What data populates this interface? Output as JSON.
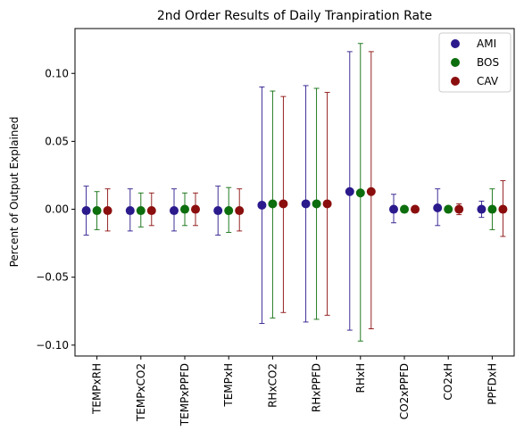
{
  "chart_data": {
    "type": "scatter",
    "title": "2nd Order Results of Daily Tranpiration Rate",
    "xlabel": "",
    "ylabel": "Percent of Output Explained",
    "categories": [
      "TEMPxRH",
      "TEMPxCO2",
      "TEMPxPPFD",
      "TEMPxH",
      "RHxCO2",
      "RHxPPFD",
      "RHxH",
      "CO2xPPFD",
      "CO2xH",
      "PPFDxH"
    ],
    "ylim": [
      -0.108,
      0.133
    ],
    "yticks": [
      -0.1,
      -0.05,
      0.0,
      0.05,
      0.1
    ],
    "ytick_labels": [
      "−0.10",
      "−0.05",
      "0.00",
      "0.05",
      "0.10"
    ],
    "grid": false,
    "legend_position": "top-right",
    "series": [
      {
        "name": "AMI",
        "color": "#2a1a8c",
        "values": [
          -0.001,
          -0.001,
          -0.001,
          -0.001,
          0.003,
          0.004,
          0.013,
          0.0,
          0.001,
          0.0
        ],
        "err_low": [
          -0.019,
          -0.016,
          -0.016,
          -0.019,
          -0.084,
          -0.083,
          -0.089,
          -0.01,
          -0.012,
          -0.006
        ],
        "err_high": [
          0.017,
          0.015,
          0.015,
          0.017,
          0.09,
          0.091,
          0.116,
          0.011,
          0.015,
          0.006
        ]
      },
      {
        "name": "BOS",
        "color": "#0d6e0d",
        "values": [
          -0.001,
          -0.001,
          0.0,
          -0.001,
          0.004,
          0.004,
          0.012,
          0.0,
          0.0,
          0.0
        ],
        "err_low": [
          -0.015,
          -0.013,
          -0.012,
          -0.017,
          -0.08,
          -0.081,
          -0.097,
          -0.001,
          -0.001,
          -0.015
        ],
        "err_high": [
          0.013,
          0.012,
          0.012,
          0.016,
          0.087,
          0.089,
          0.122,
          0.001,
          0.001,
          0.015
        ]
      },
      {
        "name": "CAV",
        "color": "#8b0e0e",
        "values": [
          -0.001,
          -0.001,
          0.0,
          -0.001,
          0.004,
          0.004,
          0.013,
          0.0,
          0.0,
          0.0
        ],
        "err_low": [
          -0.016,
          -0.012,
          -0.012,
          -0.016,
          -0.076,
          -0.078,
          -0.088,
          -0.002,
          -0.004,
          -0.02
        ],
        "err_high": [
          0.015,
          0.012,
          0.012,
          0.015,
          0.083,
          0.086,
          0.116,
          0.002,
          0.004,
          0.021
        ]
      }
    ]
  }
}
